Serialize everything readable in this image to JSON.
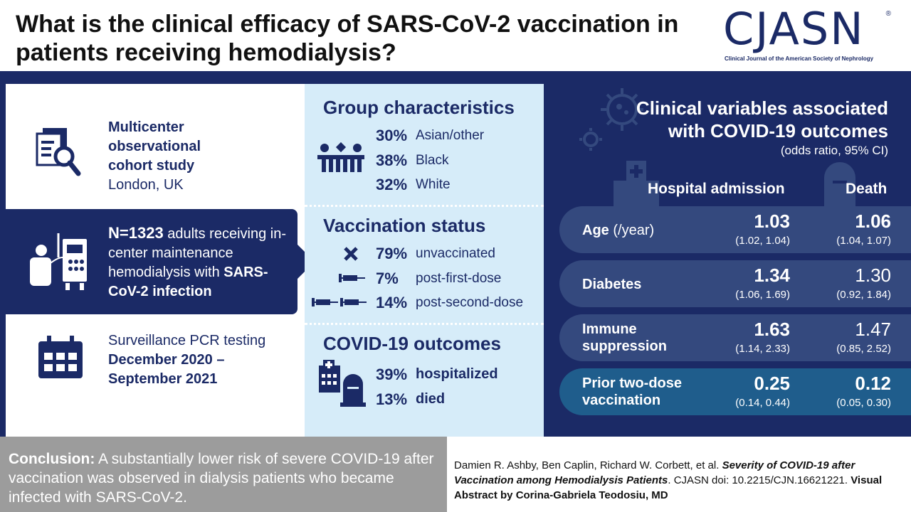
{
  "header": {
    "title": "What is the clinical efficacy of SARS-CoV-2 vaccination in patients receiving hemodialysis?",
    "logo": {
      "text": "CJASN",
      "reg": "®",
      "subtitle": "Clinical Journal of the American Society of Nephrology"
    }
  },
  "study": {
    "design_lines": [
      "Multicenter",
      "observational",
      "cohort study"
    ],
    "location": "London, UK",
    "n_bold": "N=1323",
    "n_text": " adults receiving in-center maintenance hemodialysis with ",
    "n_infection": "SARS-CoV-2 infection",
    "testing_label": "Surveillance PCR testing",
    "testing_period": "December 2020 – September 2021"
  },
  "group": {
    "title": "Group characteristics",
    "rows": [
      {
        "pct": "30%",
        "label": "Asian/other"
      },
      {
        "pct": "38%",
        "label": "Black"
      },
      {
        "pct": "32%",
        "label": "White"
      }
    ]
  },
  "vaccination": {
    "title": "Vaccination status",
    "rows": [
      {
        "pct": "79%",
        "label": "unvaccinated",
        "icon": "x-icon"
      },
      {
        "pct": "7%",
        "label": "post-first-dose",
        "icon": "syringe-icon"
      },
      {
        "pct": "14%",
        "label": "post-second-dose",
        "icon": "two-syringes-icon"
      }
    ]
  },
  "outcomes": {
    "title": "COVID-19 outcomes",
    "rows": [
      {
        "pct": "39%",
        "label": "hospitalized"
      },
      {
        "pct": "13%",
        "label": "died"
      }
    ]
  },
  "clinical": {
    "title_line1": "Clinical variables associated",
    "title_line2": "with COVID-19 outcomes",
    "subtitle": "(odds ratio, 95% CI)",
    "col_hosp": "Hospital admission",
    "col_death": "Death",
    "rows": [
      {
        "label": "Age",
        "unit": " (/year)",
        "label2": "",
        "hosp_or": "1.03",
        "hosp_ci": "(1.02, 1.04)",
        "death_or": "1.06",
        "death_ci": "(1.04, 1.07)"
      },
      {
        "label": "Diabetes",
        "unit": "",
        "label2": "",
        "hosp_or": "1.34",
        "hosp_ci": "(1.06, 1.69)",
        "death_or": "1.30",
        "death_ci": "(0.92, 1.84)"
      },
      {
        "label": "Immune",
        "unit": "",
        "label2": "suppression",
        "hosp_or": "1.63",
        "hosp_ci": "(1.14, 2.33)",
        "death_or": "1.47",
        "death_ci": "(0.85, 2.52)"
      },
      {
        "label": "Prior two-dose",
        "unit": "",
        "label2": "vaccination",
        "hosp_or": "0.25",
        "hosp_ci": "(0.14, 0.44)",
        "death_or": "0.12",
        "death_ci": "(0.05, 0.30)"
      }
    ]
  },
  "conclusion": {
    "label": "Conclusion:",
    "text": " A substantially lower risk of severe COVID-19 after vaccination was observed in dialysis patients who became infected with SARS-CoV-2."
  },
  "citation": {
    "authors": "Damien R. Ashby, Ben Caplin, Richard W. Corbett, et al. ",
    "paper_title": "Severity of COVID-19 after Vaccination among Hemodialysis Patients",
    "doi": ". CJASN doi: 10.2215/CJN.16621221. ",
    "credit": "Visual Abstract by Corina-Gabriela Teodosiu, MD"
  },
  "colors": {
    "navy": "#1b2a66",
    "light_blue": "#d6ecf9",
    "row_blue": "#34497e",
    "highlight_teal": "#1f5d8c",
    "grey": "#9c9c9c"
  }
}
